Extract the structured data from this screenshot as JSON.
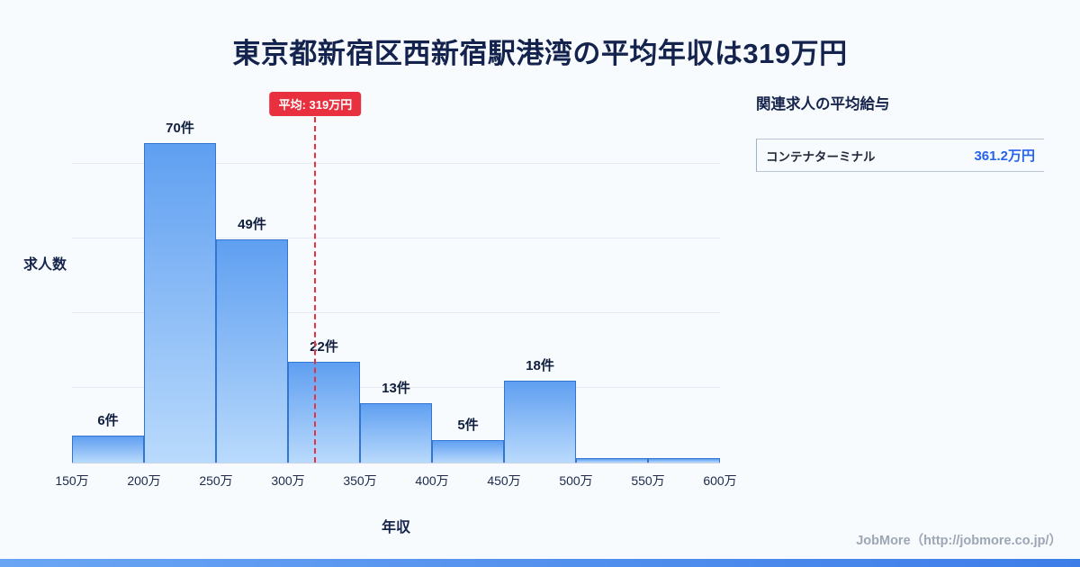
{
  "title": "東京都新宿区西新宿駅港湾の平均年収は319万円",
  "chart_data": {
    "type": "bar",
    "title": "東京都新宿区西新宿駅港湾の平均年収は319万円",
    "xlabel": "年収",
    "ylabel": "求人数",
    "x_range": [
      150,
      600
    ],
    "ylim": [
      0,
      82
    ],
    "grid": true,
    "x_ticks": [
      "150万",
      "200万",
      "250万",
      "300万",
      "350万",
      "400万",
      "450万",
      "500万",
      "550万",
      "600万"
    ],
    "bins": [
      {
        "range": "150万-200万",
        "value": 6,
        "label": "6件"
      },
      {
        "range": "200万-250万",
        "value": 70,
        "label": "70件"
      },
      {
        "range": "250万-300万",
        "value": 49,
        "label": "49件"
      },
      {
        "range": "300万-350万",
        "value": 22,
        "label": "22件"
      },
      {
        "range": "350万-400万",
        "value": 13,
        "label": "13件"
      },
      {
        "range": "400万-450万",
        "value": 5,
        "label": "5件"
      },
      {
        "range": "450万-500万",
        "value": 18,
        "label": "18件"
      },
      {
        "range": "500万-550万",
        "value": 1,
        "label": ""
      },
      {
        "range": "550万-600万",
        "value": 1,
        "label": ""
      }
    ],
    "mean_line": {
      "x_value": 319,
      "label": "平均: 319万円",
      "color": "#e8303f"
    },
    "legend": null
  },
  "side_panel": {
    "heading": "関連求人の平均給与",
    "items": [
      {
        "name": "コンテナターミナル",
        "value": "361.2万円"
      }
    ]
  },
  "footer": {
    "credit": "JobMore（http://jobmore.co.jp/）"
  },
  "colors": {
    "background": "#f8fbfe",
    "title_text": "#14234d",
    "bar_fill_top": "#5f9ff1",
    "bar_fill_bottom": "#b9dafc",
    "bar_border": "#3276d2",
    "mean_accent": "#e8303f",
    "value_blue": "#2563eb",
    "bottom_bar": "#3d7de8"
  }
}
